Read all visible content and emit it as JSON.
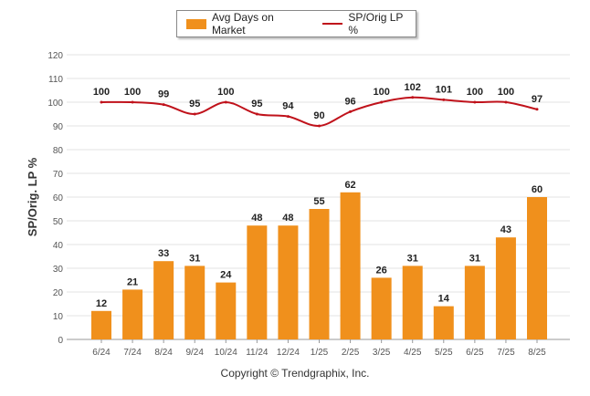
{
  "chart_data": {
    "type": "bar",
    "categories": [
      "6/24",
      "7/24",
      "8/24",
      "9/24",
      "10/24",
      "11/24",
      "12/24",
      "1/25",
      "2/25",
      "3/25",
      "4/25",
      "5/25",
      "6/25",
      "7/25",
      "8/25"
    ],
    "series": [
      {
        "name": "Avg Days on Market",
        "type": "bar",
        "color": "#F0901C",
        "values": [
          12,
          21,
          33,
          31,
          24,
          48,
          48,
          55,
          62,
          26,
          31,
          14,
          31,
          43,
          60
        ]
      },
      {
        "name": "SP/Orig LP %",
        "type": "line",
        "color": "#C0121B",
        "values": [
          100,
          100,
          99,
          95,
          100,
          95,
          94,
          90,
          96,
          100,
          102,
          101,
          100,
          100,
          97
        ]
      }
    ],
    "ylabel": "SP/Orig. LP %",
    "ylim": [
      0,
      120
    ],
    "yticks": [
      0,
      10,
      20,
      30,
      40,
      50,
      60,
      70,
      80,
      90,
      100,
      110,
      120
    ],
    "grid": true,
    "legend_position": "top-center"
  },
  "footer": {
    "copyright": "Copyright © Trendgraphix, Inc."
  }
}
